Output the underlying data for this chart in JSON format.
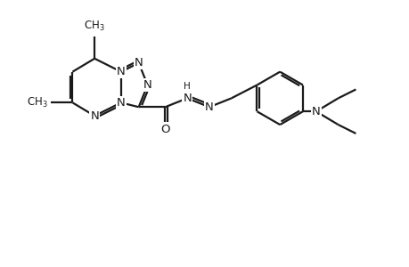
{
  "background_color": "#ffffff",
  "line_color": "#1a1a1a",
  "line_width": 1.6,
  "font_size": 9.5,
  "figsize": [
    4.6,
    3.0
  ],
  "dpi": 100,
  "xlim": [
    0,
    46
  ],
  "ylim": [
    0,
    30
  ]
}
